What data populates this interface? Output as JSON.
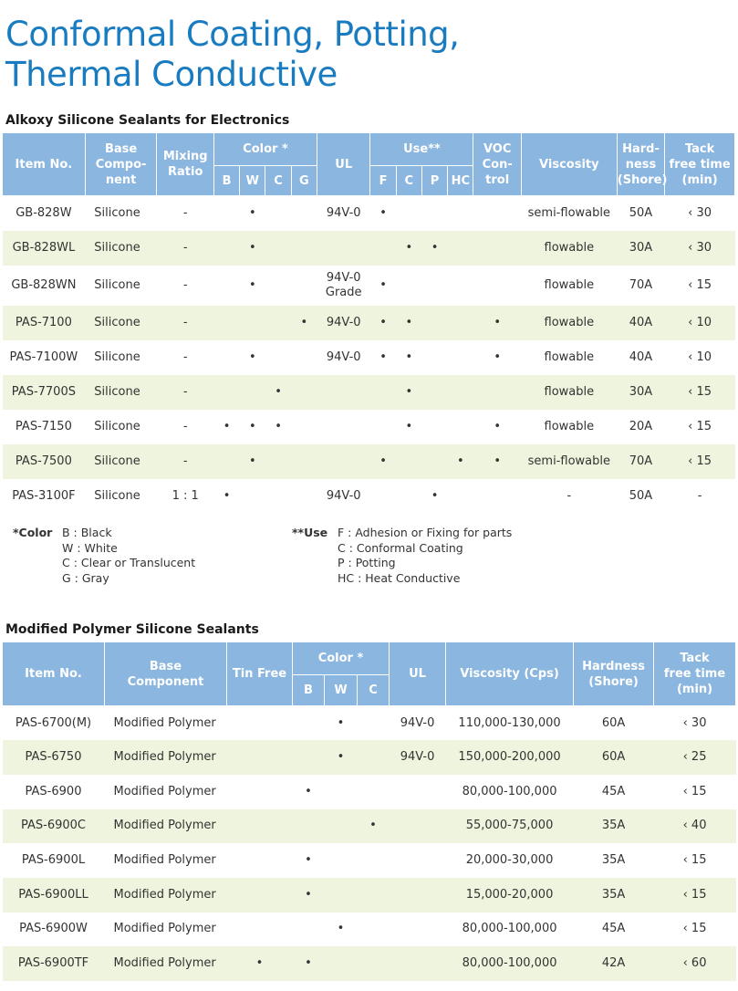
{
  "title_line1": "Conformal Coating, Potting,",
  "title_line2": "Thermal Conductive",
  "table1": {
    "title": "Alkoxy Silicone Sealants for Electronics",
    "headers": {
      "item": "Item No.",
      "base_l1": "Base",
      "base_l2": "Compo-",
      "base_l3": "nent",
      "mixing_l1": "Mixing",
      "mixing_l2": "Ratio",
      "color": "Color *",
      "color_b": "B",
      "color_w": "W",
      "color_c": "C",
      "color_g": "G",
      "ul": "UL",
      "use": "Use**",
      "use_f": "F",
      "use_c": "C",
      "use_p": "P",
      "use_hc": "HC",
      "voc_l1": "VOC",
      "voc_l2": "Con-",
      "voc_l3": "trol",
      "viscosity": "Viscosity",
      "hard_l1": "Hard-",
      "hard_l2": "ness",
      "hard_l3": "(Shore)",
      "tack_l1": "Tack",
      "tack_l2": "free time",
      "tack_l3": "(min)"
    },
    "rows": [
      {
        "item": "GB-828W",
        "base": "Silicone",
        "mix": "-",
        "b": "",
        "w": "•",
        "c": "",
        "g": "",
        "ul": "94V-0",
        "ul2": "",
        "f": "•",
        "uc": "",
        "p": "",
        "hc": "",
        "voc": "",
        "visc": "semi-flowable",
        "hard": "50A",
        "tack": "‹ 30"
      },
      {
        "item": "GB-828WL",
        "base": "Silicone",
        "mix": "-",
        "b": "",
        "w": "•",
        "c": "",
        "g": "",
        "ul": "",
        "ul2": "",
        "f": "",
        "uc": "•",
        "p": "•",
        "hc": "",
        "voc": "",
        "visc": "flowable",
        "hard": "30A",
        "tack": "‹ 30"
      },
      {
        "item": "GB-828WN",
        "base": "Silicone",
        "mix": "-",
        "b": "",
        "w": "•",
        "c": "",
        "g": "",
        "ul": "94V-0",
        "ul2": "Grade",
        "f": "•",
        "uc": "",
        "p": "",
        "hc": "",
        "voc": "",
        "visc": "flowable",
        "hard": "70A",
        "tack": "‹ 15"
      },
      {
        "item": "PAS-7100",
        "base": "Silicone",
        "mix": "-",
        "b": "",
        "w": "",
        "c": "",
        "g": "•",
        "ul": "94V-0",
        "ul2": "",
        "f": "•",
        "uc": "•",
        "p": "",
        "hc": "",
        "voc": "•",
        "visc": "flowable",
        "hard": "40A",
        "tack": "‹ 10"
      },
      {
        "item": "PAS-7100W",
        "base": "Silicone",
        "mix": "-",
        "b": "",
        "w": "•",
        "c": "",
        "g": "",
        "ul": "94V-0",
        "ul2": "",
        "f": "•",
        "uc": "•",
        "p": "",
        "hc": "",
        "voc": "•",
        "visc": "flowable",
        "hard": "40A",
        "tack": "‹ 10"
      },
      {
        "item": "PAS-7700S",
        "base": "Silicone",
        "mix": "-",
        "b": "",
        "w": "",
        "c": "•",
        "g": "",
        "ul": "",
        "ul2": "",
        "f": "",
        "uc": "•",
        "p": "",
        "hc": "",
        "voc": "",
        "visc": "flowable",
        "hard": "30A",
        "tack": "‹ 15"
      },
      {
        "item": "PAS-7150",
        "base": "Silicone",
        "mix": "-",
        "b": "•",
        "w": "•",
        "c": "•",
        "g": "",
        "ul": "",
        "ul2": "",
        "f": "",
        "uc": "•",
        "p": "",
        "hc": "",
        "voc": "•",
        "visc": "flowable",
        "hard": "20A",
        "tack": "‹ 15"
      },
      {
        "item": "PAS-7500",
        "base": "Silicone",
        "mix": "-",
        "b": "",
        "w": "•",
        "c": "",
        "g": "",
        "ul": "",
        "ul2": "",
        "f": "•",
        "uc": "",
        "p": "",
        "hc": "•",
        "voc": "•",
        "visc": "semi-flowable",
        "hard": "70A",
        "tack": "‹ 15"
      },
      {
        "item": "PAS-3100F",
        "base": "Silicone",
        "mix": "1 : 1",
        "b": "•",
        "w": "",
        "c": "",
        "g": "",
        "ul": "94V-0",
        "ul2": "",
        "f": "",
        "uc": "",
        "p": "•",
        "hc": "",
        "voc": "",
        "visc": "-",
        "hard": "50A",
        "tack": "-"
      }
    ]
  },
  "legend": {
    "color_key": "*Color",
    "color_b": "B : Black",
    "color_w": "W : White",
    "color_c": "C : Clear or Translucent",
    "color_g": "G : Gray",
    "use_key": "**Use",
    "use_f": "F  : Adhesion or Fixing for parts",
    "use_c": "C : Conformal Coating",
    "use_p": "P  : Potting",
    "use_hc": "HC : Heat Conductive"
  },
  "table2": {
    "title": "Modified Polymer Silicone Sealants",
    "headers": {
      "item": "Item No.",
      "base_l1": "Base",
      "base_l2": "Component",
      "tin": "Tin Free",
      "color": "Color *",
      "color_b": "B",
      "color_w": "W",
      "color_c": "C",
      "ul": "UL",
      "viscosity": "Viscosity (Cps)",
      "hard_l1": "Hardness",
      "hard_l2": "(Shore)",
      "tack_l1": "Tack",
      "tack_l2": "free time",
      "tack_l3": "(min)"
    },
    "rows": [
      {
        "item": "PAS-6700(M)",
        "base": "Modified Polymer",
        "tin": "",
        "b": "",
        "w": "•",
        "c": "",
        "ul": "94V-0",
        "visc": "110,000-130,000",
        "hard": "60A",
        "tack": "‹ 30"
      },
      {
        "item": "PAS-6750",
        "base": "Modified Polymer",
        "tin": "",
        "b": "",
        "w": "•",
        "c": "",
        "ul": "94V-0",
        "visc": "150,000-200,000",
        "hard": "60A",
        "tack": "‹ 25"
      },
      {
        "item": "PAS-6900",
        "base": "Modified Polymer",
        "tin": "",
        "b": "•",
        "w": "",
        "c": "",
        "ul": "",
        "visc": "80,000-100,000",
        "hard": "45A",
        "tack": "‹ 15"
      },
      {
        "item": "PAS-6900C",
        "base": "Modified Polymer",
        "tin": "",
        "b": "",
        "w": "",
        "c": "•",
        "ul": "",
        "visc": "55,000-75,000",
        "hard": "35A",
        "tack": "‹ 40"
      },
      {
        "item": "PAS-6900L",
        "base": "Modified Polymer",
        "tin": "",
        "b": "•",
        "w": "",
        "c": "",
        "ul": "",
        "visc": "20,000-30,000",
        "hard": "35A",
        "tack": "‹ 15"
      },
      {
        "item": "PAS-6900LL",
        "base": "Modified Polymer",
        "tin": "",
        "b": "•",
        "w": "",
        "c": "",
        "ul": "",
        "visc": "15,000-20,000",
        "hard": "35A",
        "tack": "‹ 15"
      },
      {
        "item": "PAS-6900W",
        "base": "Modified Polymer",
        "tin": "",
        "b": "",
        "w": "•",
        "c": "",
        "ul": "",
        "visc": "80,000-100,000",
        "hard": "45A",
        "tack": "‹ 15"
      },
      {
        "item": "PAS-6900TF",
        "base": "Modified Polymer",
        "tin": "•",
        "b": "•",
        "w": "",
        "c": "",
        "ul": "",
        "visc": "80,000-100,000",
        "hard": "42A",
        "tack": "‹ 60"
      }
    ]
  }
}
